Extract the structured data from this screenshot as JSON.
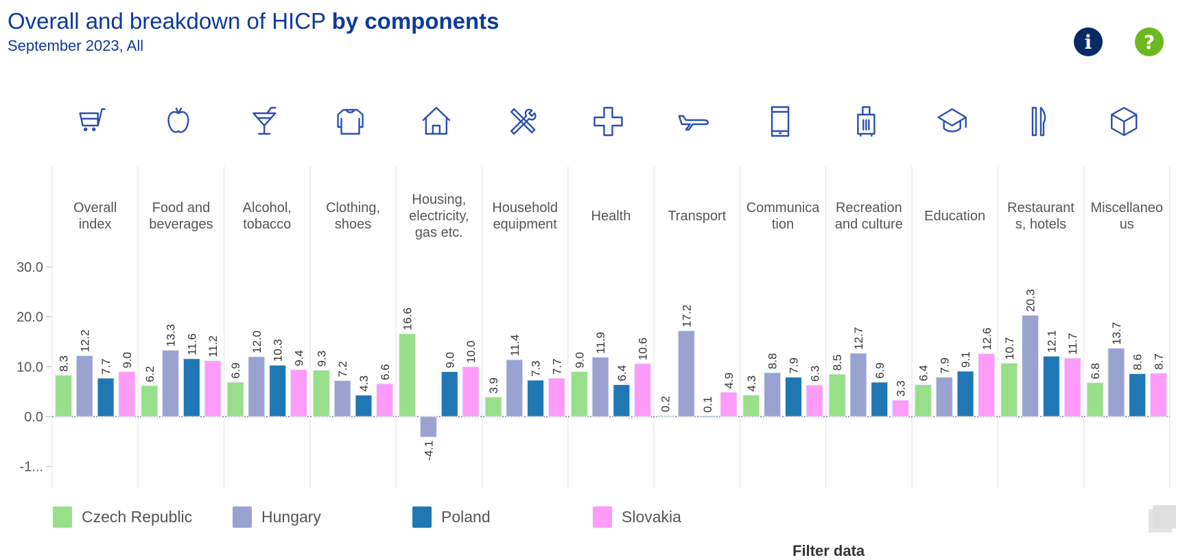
{
  "header": {
    "title_regular": "Overall and breakdown of HICP ",
    "title_bold": "by components",
    "subtitle": "September 2023, All",
    "info_icon": "i",
    "help_icon": "?"
  },
  "footer": {
    "filter_label": "Filter data"
  },
  "colors": {
    "title": "#0d3a9c",
    "Czech Republic": "#98df8a",
    "Hungary": "#9aa2cf",
    "Poland": "#1f77b4",
    "Slovakia": "#ff9bf8"
  },
  "chart_data": {
    "type": "bar",
    "title": "Overall and breakdown of HICP by components",
    "subtitle": "September 2023, All",
    "categories": [
      "Overall index",
      "Food and beverages",
      "Alcohol, tobacco",
      "Clothing, shoes",
      "Housing, electricity, gas etc.",
      "Household equipment",
      "Health",
      "Transport",
      "Communication",
      "Recreation and culture",
      "Education",
      "Restaurants, hotels",
      "Miscellaneous"
    ],
    "category_label_lines": [
      [
        "Overall",
        "index"
      ],
      [
        "Food and",
        "beverages"
      ],
      [
        "Alcohol,",
        "tobacco"
      ],
      [
        "Clothing,",
        "shoes"
      ],
      [
        "Housing,",
        "electricity,",
        "gas etc."
      ],
      [
        "Household",
        "equipment"
      ],
      [
        "Health"
      ],
      [
        "Transport"
      ],
      [
        "Communica",
        "tion"
      ],
      [
        "Recreation",
        "and culture"
      ],
      [
        "Education"
      ],
      [
        "Restaurant",
        "s, hotels"
      ],
      [
        "Miscellaneo",
        "us"
      ]
    ],
    "category_icons": [
      "shopping-cart-icon",
      "apple-icon",
      "cocktail-icon",
      "shirt-icon",
      "house-icon",
      "tools-icon",
      "health-cross-icon",
      "airplane-icon",
      "smartphone-icon",
      "suitcase-icon",
      "graduation-cap-icon",
      "cutlery-icon",
      "box-icon"
    ],
    "series": [
      {
        "name": "Czech Republic",
        "color": "#98df8a",
        "values": [
          8.3,
          6.2,
          6.9,
          9.3,
          16.6,
          3.9,
          9.0,
          0.2,
          4.3,
          8.5,
          6.4,
          10.7,
          6.8
        ]
      },
      {
        "name": "Hungary",
        "color": "#9aa2cf",
        "values": [
          12.2,
          13.3,
          12.0,
          7.2,
          -4.1,
          11.4,
          11.9,
          17.2,
          8.8,
          12.7,
          7.9,
          20.3,
          13.7
        ]
      },
      {
        "name": "Poland",
        "color": "#1f77b4",
        "values": [
          7.7,
          11.6,
          10.3,
          4.3,
          9.0,
          7.3,
          6.4,
          0.1,
          7.9,
          6.9,
          9.1,
          12.1,
          8.6
        ]
      },
      {
        "name": "Slovakia",
        "color": "#ff9bf8",
        "values": [
          9.0,
          11.2,
          9.4,
          6.6,
          10.0,
          7.7,
          10.6,
          4.9,
          6.3,
          3.3,
          12.6,
          11.7,
          8.7
        ]
      }
    ],
    "yticks": [
      "30.0",
      "20.0",
      "10.0",
      "0.0",
      "-1..."
    ],
    "ytick_values": [
      30,
      20,
      10,
      0,
      -10
    ],
    "ylim": [
      -14,
      30
    ],
    "xlabel": "",
    "ylabel": "",
    "grid": true,
    "legend_position": "bottom-left"
  }
}
